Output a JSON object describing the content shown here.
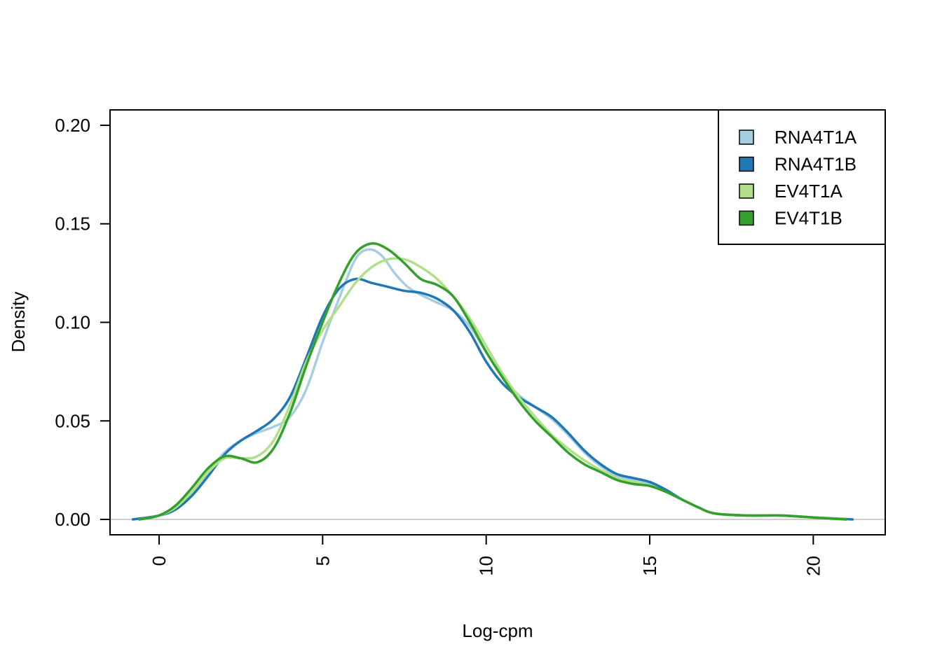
{
  "chart_data": {
    "type": "line",
    "xlabel": "Log-cpm",
    "ylabel": "Density",
    "xlim": [
      -1.5,
      22.2
    ],
    "ylim": [
      -0.0078,
      0.2078
    ],
    "xticks": [
      0,
      5,
      10,
      15,
      20
    ],
    "xtick_labels": [
      "0",
      "5",
      "10",
      "15",
      "20"
    ],
    "yticks": [
      0.0,
      0.05,
      0.1,
      0.15,
      0.2
    ],
    "ytick_labels": [
      "0.00",
      "0.05",
      "0.10",
      "0.15",
      "0.20"
    ],
    "grid": false,
    "hline": 0,
    "hline_color": "#bebebe",
    "legend_position": "top-right",
    "series": [
      {
        "name": "RNA4T1A",
        "color": "#a6cee3",
        "points": [
          [
            -0.8,
            0
          ],
          [
            0,
            0.002
          ],
          [
            0.5,
            0.006
          ],
          [
            1,
            0.014
          ],
          [
            1.5,
            0.024
          ],
          [
            2,
            0.034
          ],
          [
            2.5,
            0.04
          ],
          [
            3,
            0.044
          ],
          [
            3.5,
            0.047
          ],
          [
            4,
            0.052
          ],
          [
            4.5,
            0.066
          ],
          [
            5,
            0.09
          ],
          [
            5.5,
            0.112
          ],
          [
            6,
            0.132
          ],
          [
            6.4,
            0.137
          ],
          [
            6.8,
            0.134
          ],
          [
            7.2,
            0.125
          ],
          [
            7.6,
            0.118
          ],
          [
            8,
            0.114
          ],
          [
            8.5,
            0.11
          ],
          [
            9,
            0.106
          ],
          [
            9.5,
            0.098
          ],
          [
            10,
            0.085
          ],
          [
            10.5,
            0.072
          ],
          [
            11,
            0.063
          ],
          [
            11.5,
            0.057
          ],
          [
            12,
            0.051
          ],
          [
            12.5,
            0.043
          ],
          [
            13,
            0.034
          ],
          [
            13.5,
            0.027
          ],
          [
            14,
            0.022
          ],
          [
            14.5,
            0.02
          ],
          [
            15,
            0.018
          ],
          [
            15.5,
            0.014
          ],
          [
            16,
            0.01
          ],
          [
            16.5,
            0.006
          ],
          [
            17,
            0.003
          ],
          [
            18,
            0.002
          ],
          [
            19,
            0.002
          ],
          [
            20,
            0.001
          ],
          [
            21,
            0
          ]
        ]
      },
      {
        "name": "RNA4T1B",
        "color": "#1f78b4",
        "points": [
          [
            -0.8,
            0
          ],
          [
            0,
            0.002
          ],
          [
            0.5,
            0.005
          ],
          [
            1,
            0.012
          ],
          [
            1.5,
            0.022
          ],
          [
            2,
            0.033
          ],
          [
            2.5,
            0.04
          ],
          [
            3,
            0.045
          ],
          [
            3.5,
            0.051
          ],
          [
            4,
            0.062
          ],
          [
            4.5,
            0.082
          ],
          [
            5,
            0.103
          ],
          [
            5.5,
            0.117
          ],
          [
            6,
            0.122
          ],
          [
            6.5,
            0.12
          ],
          [
            7,
            0.118
          ],
          [
            7.5,
            0.116
          ],
          [
            8,
            0.115
          ],
          [
            8.5,
            0.112
          ],
          [
            9,
            0.106
          ],
          [
            9.5,
            0.095
          ],
          [
            10,
            0.08
          ],
          [
            10.5,
            0.069
          ],
          [
            11,
            0.062
          ],
          [
            11.5,
            0.057
          ],
          [
            12,
            0.052
          ],
          [
            12.5,
            0.044
          ],
          [
            13,
            0.035
          ],
          [
            13.5,
            0.028
          ],
          [
            14,
            0.023
          ],
          [
            14.5,
            0.021
          ],
          [
            15,
            0.019
          ],
          [
            15.5,
            0.015
          ],
          [
            16,
            0.01
          ],
          [
            16.5,
            0.006
          ],
          [
            17,
            0.003
          ],
          [
            18,
            0.002
          ],
          [
            19,
            0.002
          ],
          [
            20,
            0.001
          ],
          [
            21.2,
            0
          ]
        ]
      },
      {
        "name": "EV4T1A",
        "color": "#b2df8a",
        "points": [
          [
            -0.6,
            0
          ],
          [
            0,
            0.002
          ],
          [
            0.5,
            0.006
          ],
          [
            1,
            0.014
          ],
          [
            1.5,
            0.024
          ],
          [
            2,
            0.031
          ],
          [
            2.5,
            0.031
          ],
          [
            3,
            0.032
          ],
          [
            3.5,
            0.04
          ],
          [
            4,
            0.058
          ],
          [
            4.5,
            0.08
          ],
          [
            5,
            0.096
          ],
          [
            5.5,
            0.108
          ],
          [
            6,
            0.12
          ],
          [
            6.5,
            0.128
          ],
          [
            7,
            0.132
          ],
          [
            7.5,
            0.132
          ],
          [
            8,
            0.128
          ],
          [
            8.5,
            0.122
          ],
          [
            9,
            0.113
          ],
          [
            9.5,
            0.102
          ],
          [
            10,
            0.088
          ],
          [
            10.5,
            0.074
          ],
          [
            11,
            0.062
          ],
          [
            11.5,
            0.052
          ],
          [
            12,
            0.043
          ],
          [
            12.5,
            0.036
          ],
          [
            13,
            0.03
          ],
          [
            13.5,
            0.025
          ],
          [
            14,
            0.021
          ],
          [
            14.5,
            0.019
          ],
          [
            15,
            0.017
          ],
          [
            15.5,
            0.014
          ],
          [
            16,
            0.01
          ],
          [
            16.5,
            0.006
          ],
          [
            17,
            0.003
          ],
          [
            18,
            0.002
          ],
          [
            19,
            0.002
          ],
          [
            20,
            0.001
          ],
          [
            21,
            0
          ]
        ]
      },
      {
        "name": "EV4T1B",
        "color": "#33a02c",
        "points": [
          [
            -0.6,
            0
          ],
          [
            0,
            0.002
          ],
          [
            0.5,
            0.007
          ],
          [
            1,
            0.016
          ],
          [
            1.5,
            0.026
          ],
          [
            2,
            0.032
          ],
          [
            2.5,
            0.031
          ],
          [
            3,
            0.029
          ],
          [
            3.5,
            0.036
          ],
          [
            4,
            0.054
          ],
          [
            4.5,
            0.078
          ],
          [
            5,
            0.1
          ],
          [
            5.5,
            0.12
          ],
          [
            6,
            0.135
          ],
          [
            6.5,
            0.14
          ],
          [
            7,
            0.137
          ],
          [
            7.5,
            0.13
          ],
          [
            8,
            0.122
          ],
          [
            8.5,
            0.119
          ],
          [
            9,
            0.113
          ],
          [
            9.5,
            0.1
          ],
          [
            10,
            0.085
          ],
          [
            10.5,
            0.072
          ],
          [
            11,
            0.06
          ],
          [
            11.5,
            0.05
          ],
          [
            12,
            0.042
          ],
          [
            12.5,
            0.034
          ],
          [
            13,
            0.028
          ],
          [
            13.5,
            0.024
          ],
          [
            14,
            0.02
          ],
          [
            14.5,
            0.018
          ],
          [
            15,
            0.017
          ],
          [
            15.5,
            0.014
          ],
          [
            16,
            0.01
          ],
          [
            16.5,
            0.006
          ],
          [
            17,
            0.003
          ],
          [
            18,
            0.002
          ],
          [
            19,
            0.002
          ],
          [
            20,
            0.001
          ],
          [
            21,
            0
          ]
        ]
      }
    ]
  }
}
